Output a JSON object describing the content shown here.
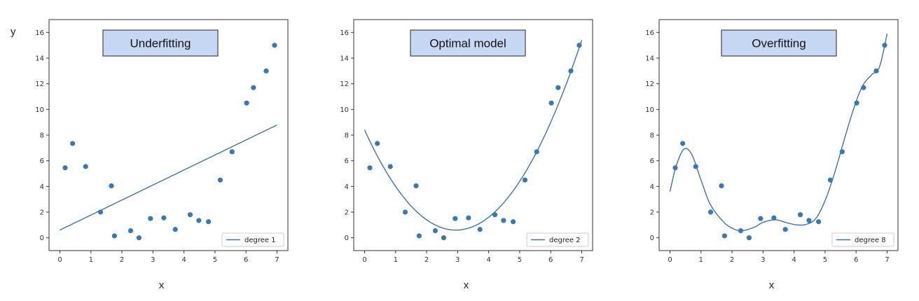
{
  "figure": {
    "ylabel": "y",
    "colors": {
      "marker": "#3a78b0",
      "line": "#3f72a8",
      "title_box_fill": "#c7d8f4",
      "title_box_border": "#444444"
    }
  },
  "chart_data": [
    {
      "type": "scatter",
      "title": "Underfitting",
      "xlabel": "x",
      "ylabel": "y",
      "xlim": [
        -0.35,
        7.35
      ],
      "ylim": [
        -1.0,
        17.0
      ],
      "xticks": [
        0,
        1,
        2,
        3,
        4,
        5,
        6,
        7
      ],
      "yticks": [
        0,
        2,
        4,
        6,
        8,
        10,
        12,
        14,
        16
      ],
      "points": {
        "x": [
          0.17,
          0.41,
          0.83,
          1.31,
          1.66,
          1.76,
          2.28,
          2.55,
          2.92,
          3.35,
          3.72,
          4.2,
          4.48,
          4.79,
          5.17,
          5.55,
          6.02,
          6.24,
          6.65,
          6.92
        ],
        "y": [
          5.45,
          7.35,
          5.55,
          2.0,
          4.05,
          0.15,
          0.55,
          0.0,
          1.5,
          1.55,
          0.65,
          1.8,
          1.35,
          1.25,
          4.5,
          6.7,
          10.5,
          11.7,
          13.0,
          15.0
        ]
      },
      "fit": {
        "name": "degree 1",
        "degree": 1,
        "coefficients": [
          0.6,
          1.17
        ]
      },
      "legend": "lower right",
      "grid": false
    },
    {
      "type": "scatter",
      "title": "Optimal model",
      "xlabel": "x",
      "xlim": [
        -0.35,
        7.35
      ],
      "ylim": [
        -1.0,
        17.0
      ],
      "xticks": [
        0,
        1,
        2,
        3,
        4,
        5,
        6,
        7
      ],
      "yticks": [
        0,
        2,
        4,
        6,
        8,
        10,
        12,
        14,
        16
      ],
      "points": {
        "x": [
          0.17,
          0.41,
          0.83,
          1.31,
          1.66,
          1.76,
          2.28,
          2.55,
          2.92,
          3.35,
          3.72,
          4.2,
          4.48,
          4.79,
          5.17,
          5.55,
          6.02,
          6.24,
          6.65,
          6.92
        ],
        "y": [
          5.45,
          7.35,
          5.55,
          2.0,
          4.05,
          0.15,
          0.55,
          0.0,
          1.5,
          1.55,
          0.65,
          1.8,
          1.35,
          1.25,
          4.5,
          6.7,
          10.5,
          11.7,
          13.0,
          15.0
        ]
      },
      "fit": {
        "name": "degree 2",
        "degree": 2,
        "coefficients": [
          8.4,
          -5.3,
          0.9
        ]
      },
      "legend": "lower right",
      "grid": false
    },
    {
      "type": "scatter",
      "title": "Overfitting",
      "xlabel": "x",
      "xlim": [
        -0.35,
        7.35
      ],
      "ylim": [
        -1.0,
        17.0
      ],
      "xticks": [
        0,
        1,
        2,
        3,
        4,
        5,
        6,
        7
      ],
      "yticks": [
        0,
        2,
        4,
        6,
        8,
        10,
        12,
        14,
        16
      ],
      "points": {
        "x": [
          0.17,
          0.41,
          0.83,
          1.31,
          1.66,
          1.76,
          2.28,
          2.55,
          2.92,
          3.35,
          3.72,
          4.2,
          4.48,
          4.79,
          5.17,
          5.55,
          6.02,
          6.24,
          6.65,
          6.92
        ],
        "y": [
          5.45,
          7.35,
          5.55,
          2.0,
          4.05,
          0.15,
          0.55,
          0.0,
          1.5,
          1.55,
          0.65,
          1.8,
          1.35,
          1.25,
          4.5,
          6.7,
          10.5,
          11.7,
          13.0,
          15.0
        ]
      },
      "fit": {
        "name": "degree 8",
        "degree": 8,
        "curve": {
          "x": [
            0,
            0.2,
            0.45,
            0.7,
            1.0,
            1.3,
            1.7,
            2.0,
            2.3,
            2.7,
            3.0,
            3.4,
            3.8,
            4.1,
            4.4,
            4.7,
            5.0,
            5.3,
            5.6,
            5.9,
            6.2,
            6.5,
            6.75,
            7.0
          ],
          "y": [
            3.6,
            5.6,
            6.9,
            6.5,
            4.5,
            2.6,
            1.3,
            0.75,
            0.55,
            0.8,
            1.2,
            1.4,
            1.15,
            1.0,
            1.05,
            1.5,
            2.9,
            5.0,
            7.5,
            9.9,
            11.8,
            12.7,
            13.3,
            15.9
          ]
        }
      },
      "legend": "lower right",
      "grid": false
    }
  ]
}
